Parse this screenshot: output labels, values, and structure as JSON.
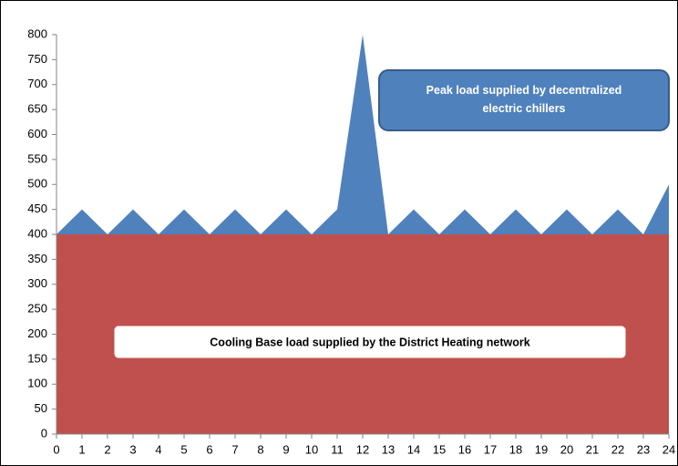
{
  "chart_data": {
    "type": "stacked_area",
    "x": [
      0,
      1,
      2,
      3,
      4,
      5,
      6,
      7,
      8,
      9,
      10,
      11,
      12,
      13,
      14,
      15,
      16,
      17,
      18,
      19,
      20,
      21,
      22,
      23,
      24
    ],
    "series": [
      {
        "color": "#c0504d",
        "values": [
          400,
          400,
          400,
          400,
          400,
          400,
          400,
          400,
          400,
          400,
          400,
          400,
          400,
          400,
          400,
          400,
          400,
          400,
          400,
          400,
          400,
          400,
          400,
          400,
          400
        ]
      },
      {
        "color": "#4f81bd",
        "values": [
          0,
          50,
          0,
          50,
          0,
          50,
          0,
          50,
          0,
          50,
          0,
          50,
          400,
          0,
          50,
          0,
          50,
          0,
          50,
          0,
          50,
          0,
          50,
          0,
          100
        ]
      }
    ],
    "xlim": [
      0,
      24
    ],
    "xticks": [
      0,
      1,
      2,
      3,
      4,
      5,
      6,
      7,
      8,
      9,
      10,
      11,
      12,
      13,
      14,
      15,
      16,
      17,
      18,
      19,
      20,
      21,
      22,
      23,
      24
    ],
    "ylim": [
      0,
      800
    ],
    "yticks": [
      0,
      50,
      100,
      150,
      200,
      250,
      300,
      350,
      400,
      450,
      500,
      550,
      600,
      650,
      700,
      750,
      800
    ],
    "annotations": [
      "Peak load supplied by decentralized electric chillers",
      "Cooling Base load supplied by the District Heating network"
    ]
  }
}
